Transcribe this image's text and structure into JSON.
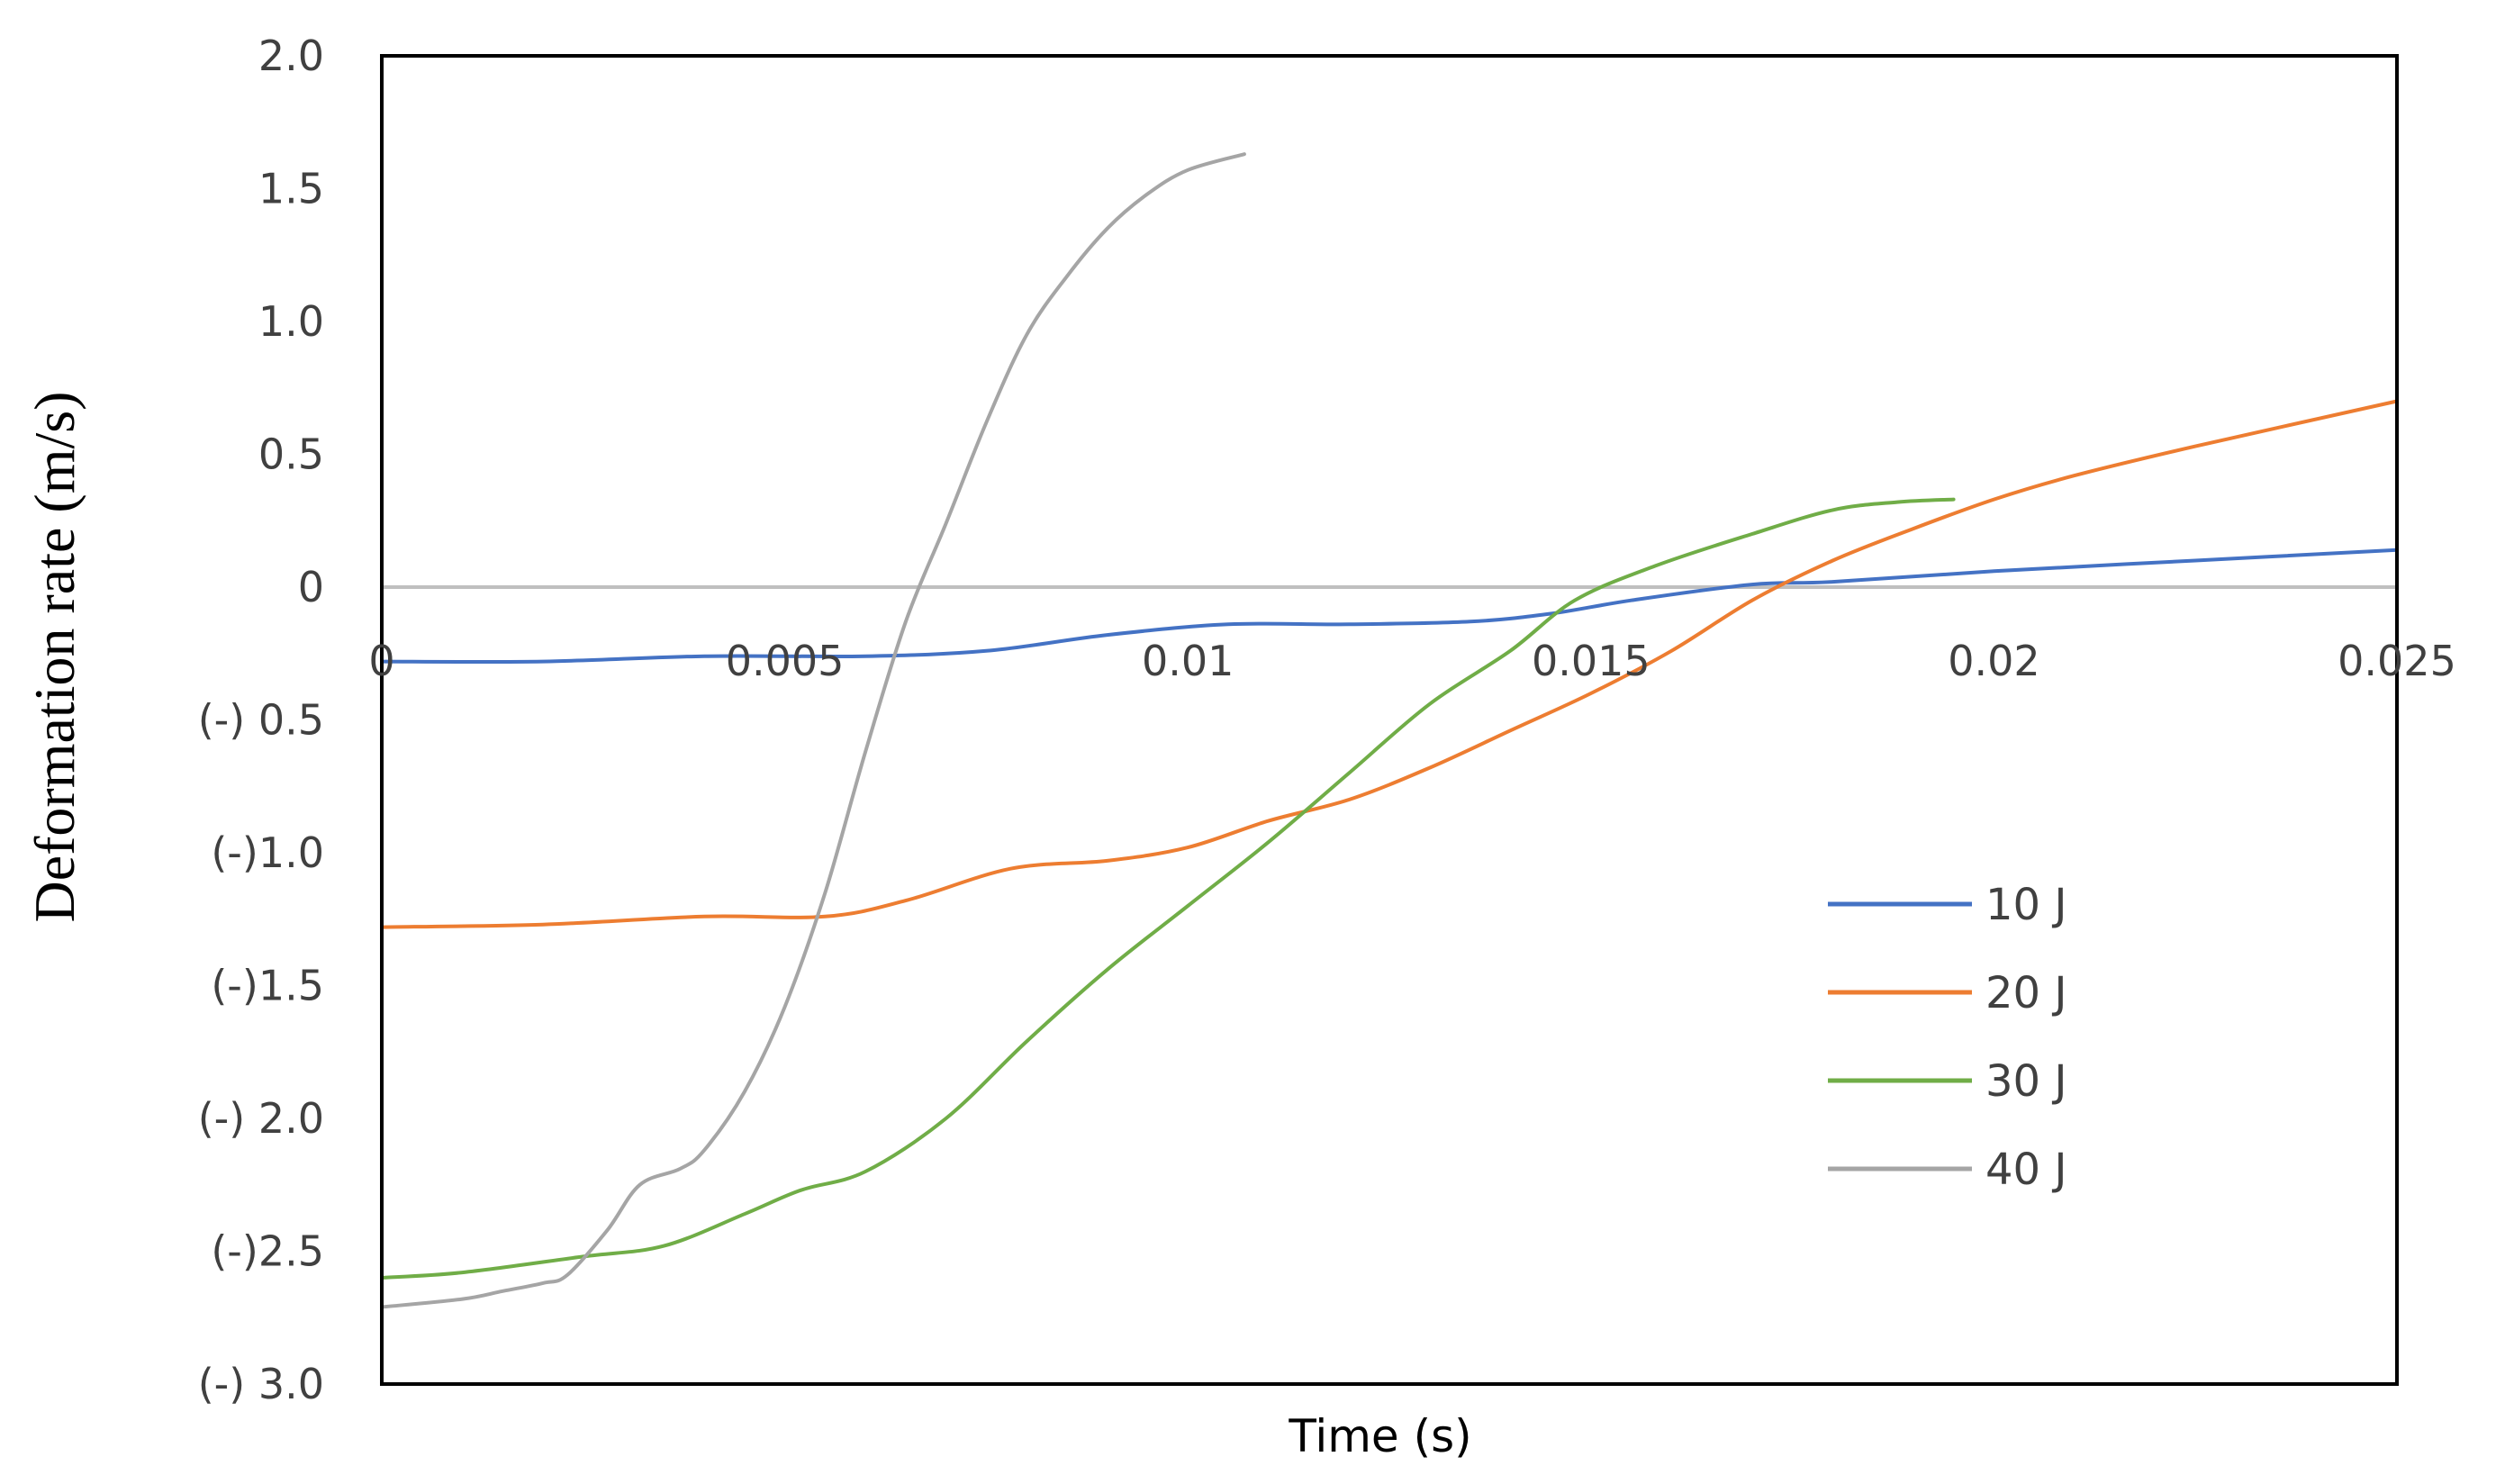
{
  "chart_data": {
    "type": "line",
    "title": "",
    "xlabel": "Time (s)",
    "ylabel": "Deformation rate (m/s)",
    "xlim": [
      0,
      0.025
    ],
    "ylim": [
      -3.0,
      2.0
    ],
    "x_ticks": [
      0,
      0.005,
      0.01,
      0.015,
      0.02,
      0.025
    ],
    "x_tick_labels": [
      "0",
      "0.005",
      "0.01",
      "0.015",
      "0.02",
      "0.025"
    ],
    "y_ticks": [
      2.0,
      1.5,
      1.0,
      0.5,
      0,
      -0.5,
      -1.0,
      -1.5,
      -2.0,
      -2.5,
      -3.0
    ],
    "y_tick_labels": [
      "2.0",
      "1.5",
      "1.0",
      "0.5",
      "0",
      "(-) 0.5",
      "(-)1.0",
      "(-)1.5",
      "(-) 2.0",
      "(-)2.5",
      "(-) 3.0"
    ],
    "grid": false,
    "zero_line_color": "#bfbfbf",
    "legend_position": "right",
    "series": [
      {
        "name": "10 J",
        "color": "#4472c4",
        "points": [
          [
            0,
            -0.28
          ],
          [
            0.002,
            -0.28
          ],
          [
            0.004,
            -0.26
          ],
          [
            0.006,
            -0.26
          ],
          [
            0.0075,
            -0.24
          ],
          [
            0.009,
            -0.18
          ],
          [
            0.0105,
            -0.14
          ],
          [
            0.012,
            -0.14
          ],
          [
            0.0135,
            -0.13
          ],
          [
            0.0145,
            -0.1
          ],
          [
            0.0155,
            -0.05
          ],
          [
            0.017,
            0.01
          ],
          [
            0.018,
            0.02
          ],
          [
            0.02,
            0.06
          ],
          [
            0.0225,
            0.1
          ],
          [
            0.025,
            0.14
          ]
        ]
      },
      {
        "name": "20 J",
        "color": "#ed7d31",
        "points": [
          [
            0,
            -1.28
          ],
          [
            0.002,
            -1.27
          ],
          [
            0.004,
            -1.24
          ],
          [
            0.0055,
            -1.24
          ],
          [
            0.0065,
            -1.18
          ],
          [
            0.0078,
            -1.06
          ],
          [
            0.009,
            -1.03
          ],
          [
            0.01,
            -0.98
          ],
          [
            0.011,
            -0.88
          ],
          [
            0.012,
            -0.8
          ],
          [
            0.013,
            -0.68
          ],
          [
            0.014,
            -0.54
          ],
          [
            0.015,
            -0.4
          ],
          [
            0.016,
            -0.24
          ],
          [
            0.017,
            -0.05
          ],
          [
            0.018,
            0.1
          ],
          [
            0.019,
            0.22
          ],
          [
            0.02,
            0.33
          ],
          [
            0.021,
            0.42
          ],
          [
            0.0225,
            0.53
          ],
          [
            0.025,
            0.7
          ]
        ]
      },
      {
        "name": "30 J",
        "color": "#70ad47",
        "points": [
          [
            0,
            -2.6
          ],
          [
            0.001,
            -2.58
          ],
          [
            0.0025,
            -2.52
          ],
          [
            0.0035,
            -2.48
          ],
          [
            0.0045,
            -2.36
          ],
          [
            0.0052,
            -2.27
          ],
          [
            0.006,
            -2.2
          ],
          [
            0.007,
            -2.0
          ],
          [
            0.008,
            -1.71
          ],
          [
            0.009,
            -1.44
          ],
          [
            0.01,
            -1.2
          ],
          [
            0.011,
            -0.96
          ],
          [
            0.012,
            -0.7
          ],
          [
            0.013,
            -0.44
          ],
          [
            0.014,
            -0.24
          ],
          [
            0.0148,
            -0.05
          ],
          [
            0.0158,
            0.08
          ],
          [
            0.017,
            0.2
          ],
          [
            0.018,
            0.29
          ],
          [
            0.0188,
            0.32
          ],
          [
            0.0195,
            0.33
          ]
        ]
      },
      {
        "name": "40 J",
        "color": "#a5a5a5",
        "points": [
          [
            0,
            -2.71
          ],
          [
            0.001,
            -2.68
          ],
          [
            0.0015,
            -2.65
          ],
          [
            0.002,
            -2.62
          ],
          [
            0.0023,
            -2.59
          ],
          [
            0.0028,
            -2.42
          ],
          [
            0.0032,
            -2.25
          ],
          [
            0.0037,
            -2.19
          ],
          [
            0.004,
            -2.12
          ],
          [
            0.0045,
            -1.9
          ],
          [
            0.005,
            -1.58
          ],
          [
            0.0055,
            -1.15
          ],
          [
            0.006,
            -0.62
          ],
          [
            0.0065,
            -0.13
          ],
          [
            0.007,
            0.24
          ],
          [
            0.0075,
            0.62
          ],
          [
            0.008,
            0.95
          ],
          [
            0.0085,
            1.17
          ],
          [
            0.009,
            1.35
          ],
          [
            0.0095,
            1.48
          ],
          [
            0.01,
            1.57
          ],
          [
            0.0107,
            1.63
          ]
        ]
      }
    ]
  }
}
